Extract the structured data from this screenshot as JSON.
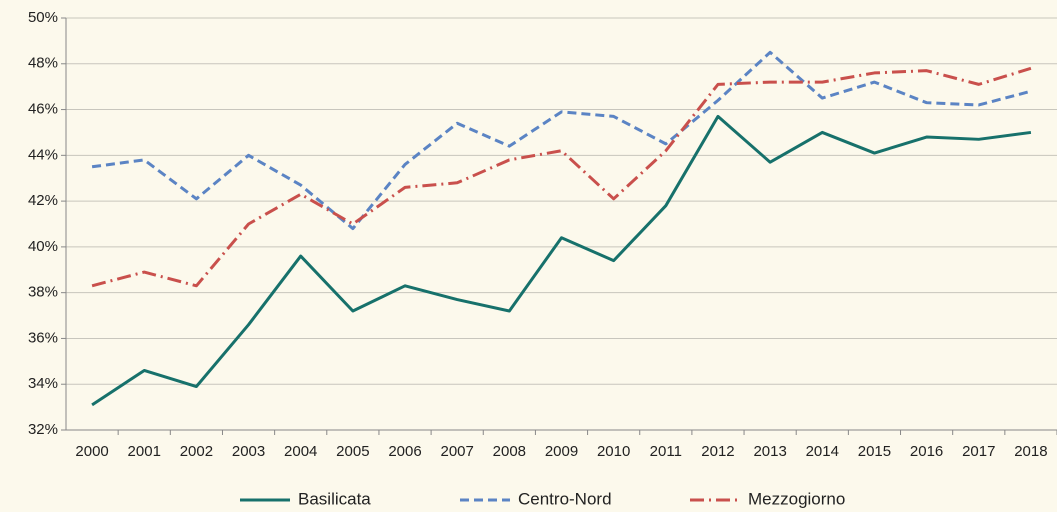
{
  "chart_data": {
    "type": "line",
    "categories": [
      "2000",
      "2001",
      "2002",
      "2003",
      "2004",
      "2005",
      "2006",
      "2007",
      "2008",
      "2009",
      "2010",
      "2011",
      "2012",
      "2013",
      "2014",
      "2015",
      "2016",
      "2017",
      "2018"
    ],
    "series": [
      {
        "name": "Basilicata",
        "color": "#17716b",
        "dash": "solid",
        "values": [
          33.1,
          34.6,
          33.9,
          36.6,
          39.6,
          37.2,
          38.3,
          37.7,
          37.2,
          40.4,
          39.4,
          41.8,
          45.7,
          43.7,
          45.0,
          44.1,
          44.8,
          44.7,
          45.0
        ]
      },
      {
        "name": "Centro-Nord",
        "color": "#5b84c4",
        "dash": "dashed",
        "values": [
          43.5,
          43.8,
          42.1,
          44.0,
          42.7,
          40.8,
          43.6,
          45.4,
          44.4,
          45.9,
          45.7,
          44.5,
          46.4,
          48.5,
          46.5,
          47.2,
          46.3,
          46.2,
          46.8
        ]
      },
      {
        "name": "Mezzogiorno",
        "color": "#c9504c",
        "dash": "dashdot",
        "values": [
          38.3,
          38.9,
          38.3,
          41.0,
          42.3,
          41.0,
          42.6,
          42.8,
          43.8,
          44.2,
          42.1,
          44.2,
          47.1,
          47.2,
          47.2,
          47.6,
          47.7,
          47.1,
          47.8
        ]
      }
    ],
    "ylim": [
      32,
      50
    ],
    "yticks": [
      {
        "value": 32,
        "label": "32%"
      },
      {
        "value": 34,
        "label": "34%"
      },
      {
        "value": 36,
        "label": "36%"
      },
      {
        "value": 38,
        "label": "38%"
      },
      {
        "value": 40,
        "label": "40%"
      },
      {
        "value": 42,
        "label": "42%"
      },
      {
        "value": 44,
        "label": "44%"
      },
      {
        "value": 46,
        "label": "46%"
      },
      {
        "value": 48,
        "label": "48%"
      },
      {
        "value": 50,
        "label": "50%"
      }
    ],
    "grid": true,
    "legend": "bottom"
  }
}
